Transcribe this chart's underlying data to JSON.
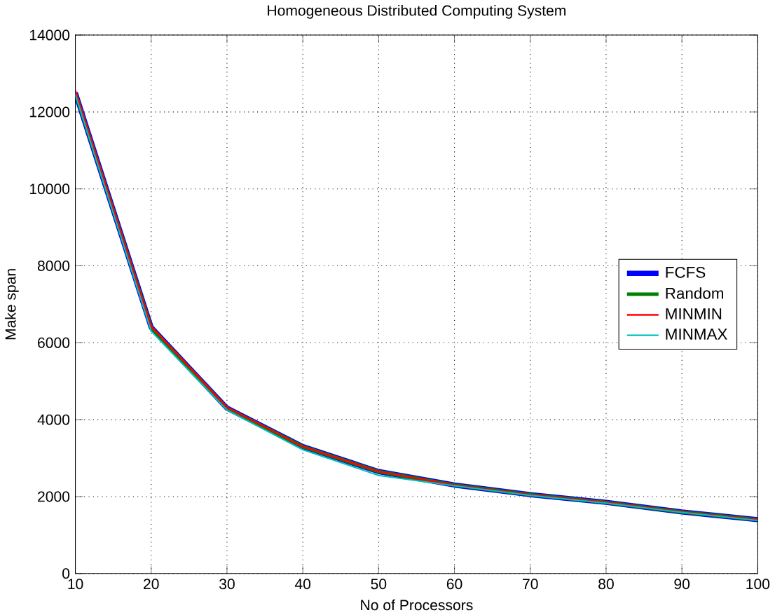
{
  "chart_data": {
    "type": "line",
    "title": "Homogeneous Distributed Computing System",
    "xlabel": "No of Processors",
    "ylabel": "Make span",
    "x": [
      10,
      20,
      30,
      40,
      50,
      60,
      70,
      80,
      90,
      100
    ],
    "series": [
      {
        "name": "FCFS",
        "color": "#0000ff",
        "values": [
          12500,
          6400,
          4300,
          3300,
          2650,
          2300,
          2050,
          1850,
          1600,
          1400
        ]
      },
      {
        "name": "Random",
        "color": "#008000",
        "values": [
          12500,
          6400,
          4300,
          3300,
          2650,
          2300,
          2050,
          1850,
          1600,
          1400
        ]
      },
      {
        "name": "MINMIN",
        "color": "#ff0000",
        "values": [
          12550,
          6420,
          4320,
          3300,
          2650,
          2300,
          2050,
          1850,
          1600,
          1400
        ]
      },
      {
        "name": "MINMAX",
        "color": "#00bfbf",
        "values": [
          12450,
          6300,
          4250,
          3220,
          2550,
          2280,
          2030,
          1830,
          1590,
          1380
        ]
      }
    ],
    "xlim": [
      10,
      100
    ],
    "ylim": [
      0,
      14000
    ],
    "xticks": [
      10,
      20,
      30,
      40,
      50,
      60,
      70,
      80,
      90,
      100
    ],
    "yticks": [
      0,
      2000,
      4000,
      6000,
      8000,
      10000,
      12000,
      14000
    ],
    "grid": true,
    "legend": "right",
    "marker": "none",
    "line_style": "solid"
  }
}
